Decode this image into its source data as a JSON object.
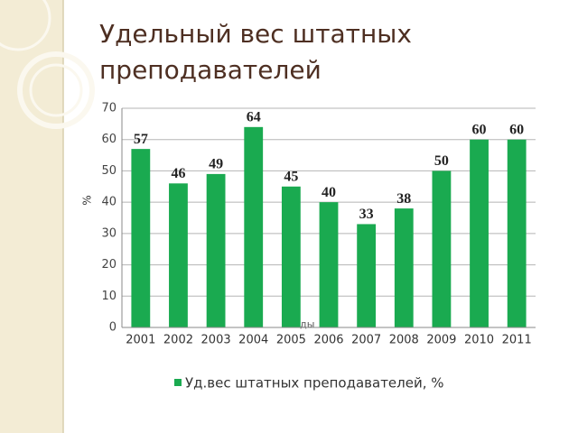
{
  "chart_data": {
    "type": "bar",
    "title": "Удельный вес штатных преподавателей",
    "categories": [
      "2001",
      "2002",
      "2003",
      "2004",
      "2005",
      "2006",
      "2007",
      "2008",
      "2009",
      "2010",
      "2011"
    ],
    "series": [
      {
        "name": "Уд.вес штатных преподавателей, %",
        "color": "#1aaa50",
        "values": [
          57,
          46,
          49,
          64,
          45,
          40,
          33,
          38,
          50,
          60,
          60
        ]
      }
    ],
    "y_label": "%",
    "x_label": "годы",
    "ylim": [
      0,
      70
    ],
    "yticks": [
      0,
      10,
      20,
      30,
      40,
      50,
      60,
      70
    ],
    "grid": true,
    "legend": "bottom"
  }
}
